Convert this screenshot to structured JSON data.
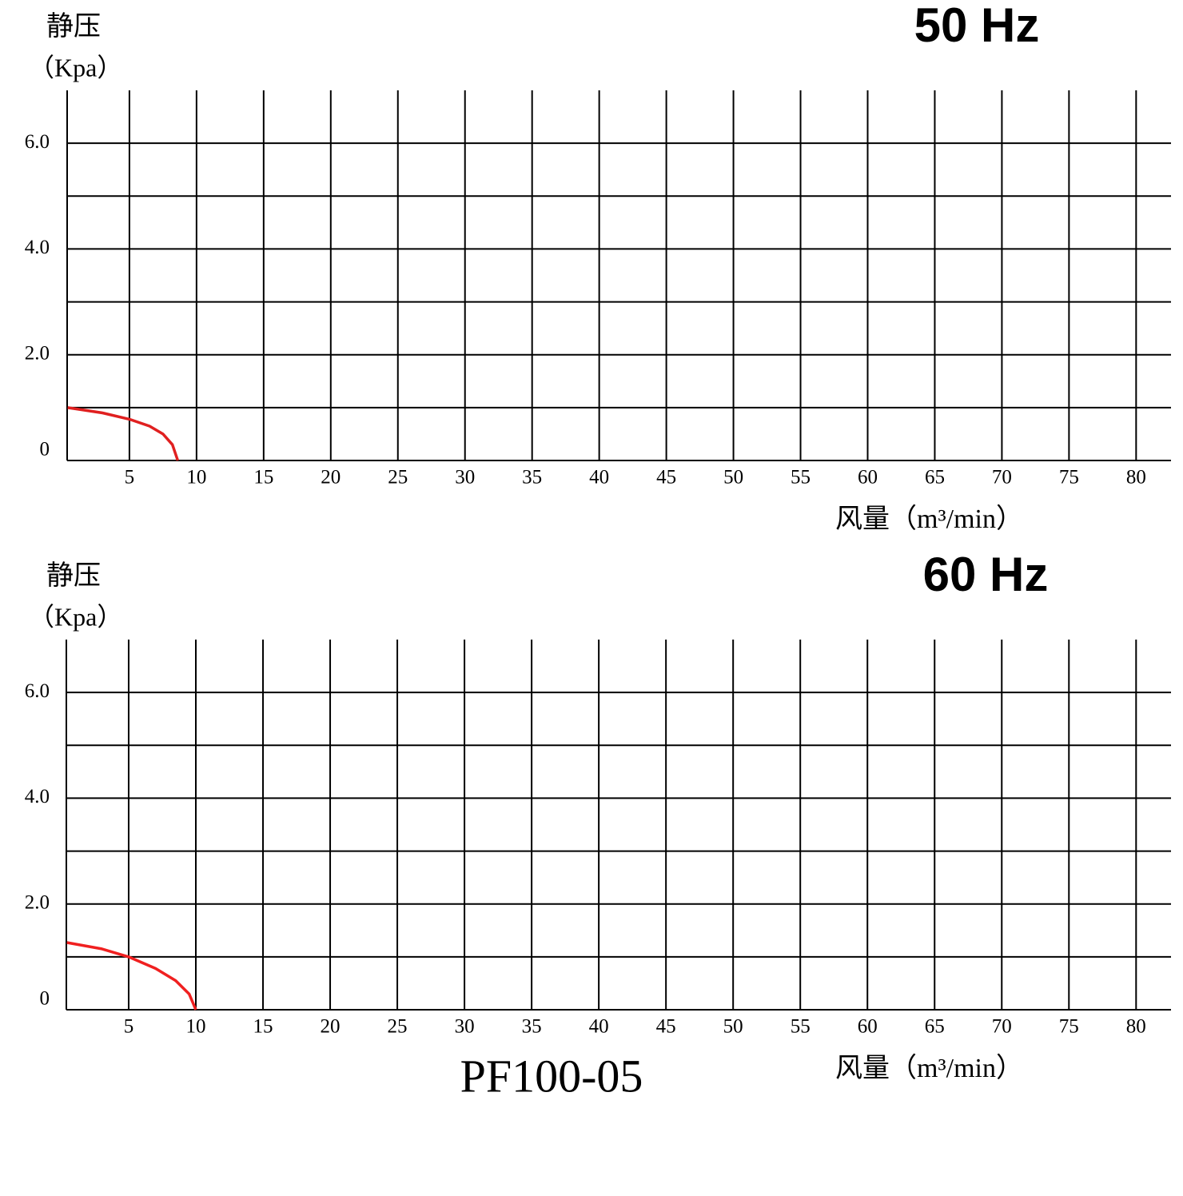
{
  "chart_data": [
    {
      "type": "line",
      "y_label_top": "静压",
      "y_label_unit": "（Kpa）",
      "freq": "50 Hz",
      "x_label": "风量（m³/min）",
      "xlim": [
        0.36,
        82.6
      ],
      "xticks": [
        5,
        10,
        15,
        20,
        25,
        30,
        35,
        40,
        45,
        50,
        55,
        60,
        65,
        70,
        75,
        80
      ],
      "ylim": [
        0,
        7
      ],
      "yticks": [
        0,
        {
          "value": 2,
          "label": "2.0"
        },
        {
          "value": 4,
          "label": "4.0"
        },
        {
          "value": 6,
          "label": "6.0"
        }
      ],
      "y_minor_grid": [
        1,
        3,
        5
      ],
      "series": [
        {
          "color": "#e02020",
          "x": [
            0.4,
            3,
            5,
            6.5,
            7.5,
            8.2,
            8.6
          ],
          "values": [
            1.0,
            0.9,
            0.78,
            0.65,
            0.5,
            0.3,
            0
          ]
        }
      ]
    },
    {
      "type": "line",
      "y_label_top": "静压",
      "y_label_unit": "（Kpa）",
      "freq": "60 Hz",
      "x_label": "风量（m³/min）",
      "xlim": [
        0.36,
        82.6
      ],
      "xticks": [
        5,
        10,
        15,
        20,
        25,
        30,
        35,
        40,
        45,
        50,
        55,
        60,
        65,
        70,
        75,
        80
      ],
      "ylim": [
        0,
        7
      ],
      "yticks": [
        0,
        {
          "value": 2,
          "label": "2.0"
        },
        {
          "value": 4,
          "label": "4.0"
        },
        {
          "value": 6,
          "label": "6.0"
        }
      ],
      "y_minor_grid": [
        1,
        3,
        5
      ],
      "series": [
        {
          "color": "#f02020",
          "x": [
            0.4,
            3,
            5,
            7,
            8.5,
            9.5,
            10
          ],
          "values": [
            1.27,
            1.15,
            1.0,
            0.78,
            0.55,
            0.3,
            0
          ]
        }
      ]
    }
  ],
  "model": "PF100-05"
}
